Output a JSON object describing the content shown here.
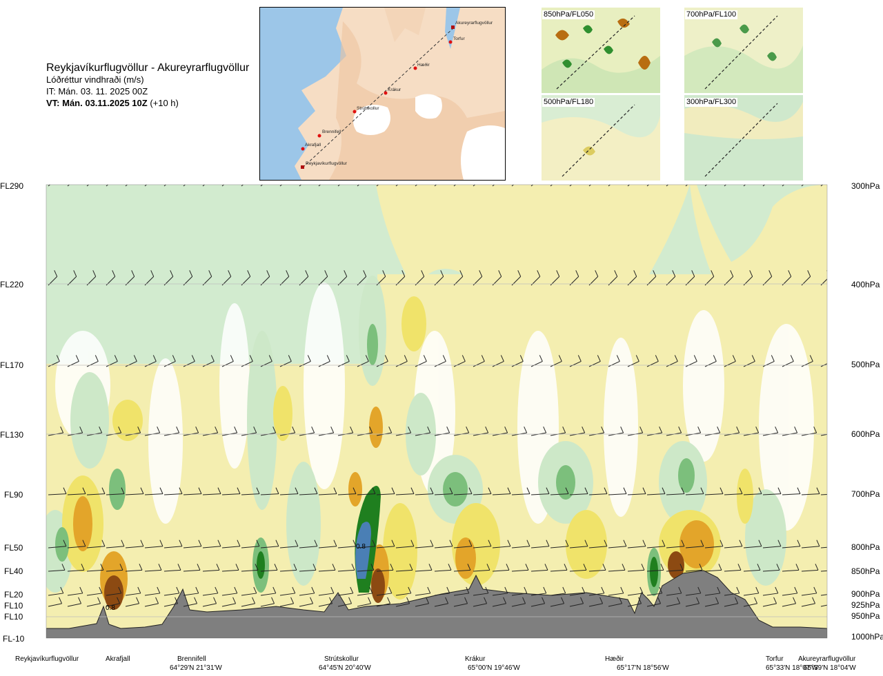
{
  "header": {
    "title": "Reykjavíkurflugvöllur - Akureyrarflugvöllur",
    "subtitle": "Lóðréttur vindhraði (m/s)",
    "it": "IT: Mán. 03. 11. 2025 00Z",
    "vt_bold": "VT: Mán. 03.11.2025 10Z",
    "vt_plus": " (+10 h)"
  },
  "map": {
    "labels": [
      "Akureyrarflugvöllur",
      "Torfur",
      "Hæðir",
      "Krákur",
      "Strútskollur",
      "Brennifell",
      "Akrafjall",
      "Reykjavíkurflugvöllur"
    ]
  },
  "thumbnails": [
    {
      "label": "850hPa/FL050"
    },
    {
      "label": "700hPa/FL100"
    },
    {
      "label": "500hPa/FL180"
    },
    {
      "label": "300hPa/FL300"
    }
  ],
  "chart_data": {
    "type": "heatmap",
    "title": "Lóðréttur vindhraði (m/s)",
    "colors": {
      "downdraft_strong": "#7a3f0a",
      "downdraft_mod": "#e0a020",
      "downdraft_weak": "#f0e88a",
      "neutral": "#ffffff",
      "updraft_weak": "#cce8c8",
      "updraft_mod": "#7cbf7c",
      "updraft_strong": "#1f7f1f",
      "updraft_max": "#4a7fb5",
      "terrain": "#808080"
    },
    "flight_levels": [
      "FL290",
      "FL220",
      "FL170",
      "FL130",
      "FL90",
      "FL50",
      "FL40",
      "FL20",
      "FL10",
      "FL10",
      "FL-10"
    ],
    "pressure_levels": [
      "300hPa",
      "400hPa",
      "500hPa",
      "600hPa",
      "700hPa",
      "800hPa",
      "850hPa",
      "900hPa",
      "925hPa",
      "950hPa",
      "1000hPa"
    ],
    "annotations": [
      "0.8",
      "0.8"
    ],
    "locations": [
      {
        "name": "Reykjavíkurflugvöllur",
        "coord": ""
      },
      {
        "name": "Akrafjall",
        "coord": ""
      },
      {
        "name": "Brennifell",
        "coord": "64°29'N 21°31'W"
      },
      {
        "name": "Strútskollur",
        "coord": "64°45'N 20°40'W"
      },
      {
        "name": "Krákur",
        "coord": "65°00'N 19°46'W"
      },
      {
        "name": "Hæðir",
        "coord": "65°17'N 18°56'W"
      },
      {
        "name": "Torfur",
        "coord": "65°33'N 18°07'W"
      },
      {
        "name": "Akureyrarflugvöllur",
        "coord": "65°39'N 18°04'W"
      }
    ]
  }
}
